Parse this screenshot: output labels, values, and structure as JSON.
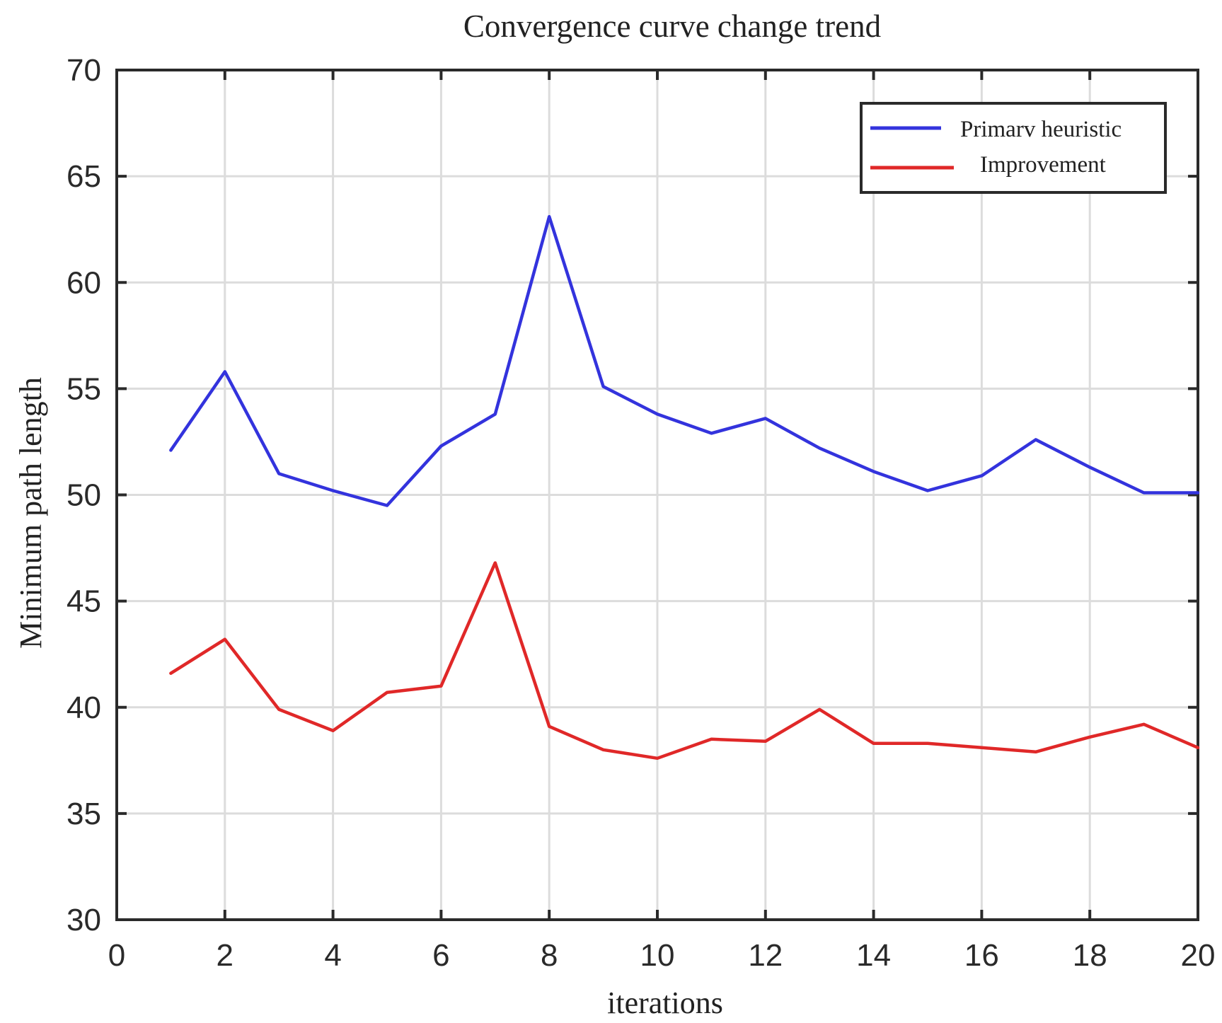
{
  "chart_data": {
    "type": "line",
    "title": "Convergence curve change trend",
    "xlabel": "iterations",
    "ylabel": "Minimum path length",
    "xlim": [
      0,
      20
    ],
    "ylim": [
      30,
      70
    ],
    "xticks": [
      0,
      2,
      4,
      6,
      8,
      10,
      12,
      14,
      16,
      18,
      20
    ],
    "yticks": [
      30,
      35,
      40,
      45,
      50,
      55,
      60,
      65,
      70
    ],
    "grid": true,
    "legend_position": "top-right",
    "x": [
      1,
      2,
      3,
      4,
      5,
      6,
      7,
      8,
      9,
      10,
      11,
      12,
      13,
      14,
      15,
      16,
      17,
      18,
      19,
      20
    ],
    "series": [
      {
        "name": "Primarv heuristic",
        "color": "#3333dd",
        "values": [
          52.1,
          55.8,
          51.0,
          50.2,
          49.5,
          52.3,
          53.8,
          63.1,
          55.1,
          53.8,
          52.9,
          53.6,
          52.2,
          51.1,
          50.2,
          50.9,
          52.6,
          51.3,
          50.1,
          50.1
        ]
      },
      {
        "name": "Improvement",
        "color": "#e02828",
        "values": [
          41.6,
          43.2,
          39.9,
          38.9,
          40.7,
          41.0,
          46.8,
          39.1,
          38.0,
          37.6,
          38.5,
          38.4,
          39.9,
          38.3,
          38.3,
          38.1,
          37.9,
          38.6,
          39.2,
          38.1
        ]
      }
    ]
  }
}
